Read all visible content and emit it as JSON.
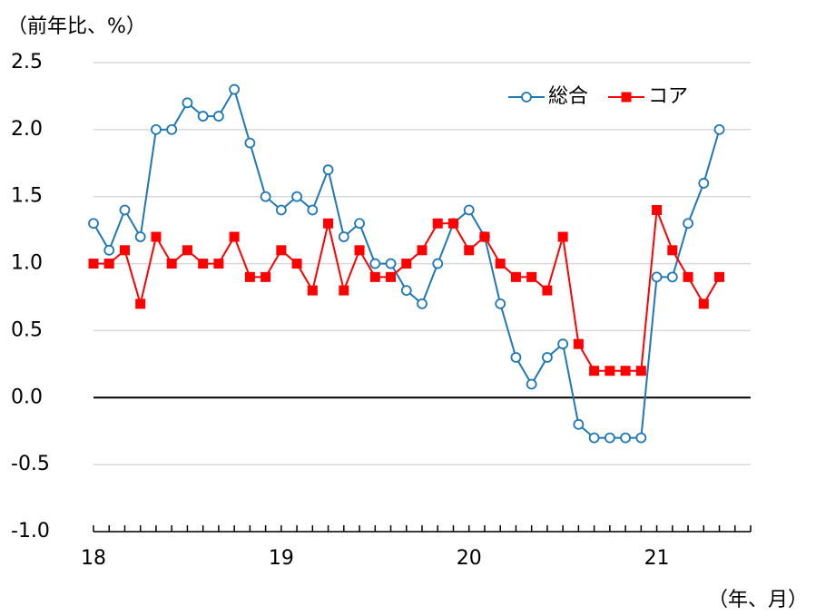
{
  "chart_data": {
    "type": "line",
    "title": "（前年比、%）",
    "x_label": "（年、月）",
    "categories": [
      "18",
      null,
      null,
      null,
      null,
      null,
      null,
      null,
      null,
      null,
      null,
      null,
      "19",
      null,
      null,
      null,
      null,
      null,
      null,
      null,
      null,
      null,
      null,
      null,
      "20",
      null,
      null,
      null,
      null,
      null,
      null,
      null,
      null,
      null,
      null,
      null,
      "21",
      null,
      null,
      null,
      null
    ],
    "series": [
      {
        "name": "総合",
        "color": "#1f77b4",
        "marker": "circle",
        "values": [
          1.3,
          1.1,
          1.4,
          1.2,
          2.0,
          2.0,
          2.2,
          2.1,
          2.1,
          2.3,
          1.9,
          1.5,
          1.4,
          1.5,
          1.4,
          1.7,
          1.2,
          1.3,
          1.0,
          1.0,
          0.8,
          0.7,
          1.0,
          1.3,
          1.4,
          1.2,
          0.7,
          0.3,
          0.1,
          0.3,
          0.4,
          -0.2,
          -0.3,
          -0.3,
          -0.3,
          -0.3,
          0.9,
          0.9,
          1.3,
          1.6,
          2.0
        ]
      },
      {
        "name": "コア",
        "color": "#ff0000",
        "marker": "square",
        "values": [
          1.0,
          1.0,
          1.1,
          0.7,
          1.2,
          1.0,
          1.1,
          1.0,
          1.0,
          1.2,
          0.9,
          0.9,
          1.1,
          1.0,
          0.8,
          1.3,
          0.8,
          1.1,
          0.9,
          0.9,
          1.0,
          1.1,
          1.3,
          1.3,
          1.1,
          1.2,
          1.0,
          0.9,
          0.9,
          0.8,
          1.2,
          0.4,
          0.2,
          0.2,
          0.2,
          0.2,
          1.4,
          1.1,
          0.9,
          0.7,
          0.9
        ]
      }
    ],
    "ylim": [
      -1.0,
      2.5
    ],
    "yticks": [
      {
        "value": -1.0,
        "label": "-1.0"
      },
      -0.5,
      {
        "value": 0,
        "label": "0.0"
      },
      0.5,
      {
        "value": 1,
        "label": "1.0"
      },
      1.5,
      {
        "value": 2,
        "label": "2.0"
      },
      2.5
    ],
    "grid": true,
    "legend": "top-right"
  }
}
